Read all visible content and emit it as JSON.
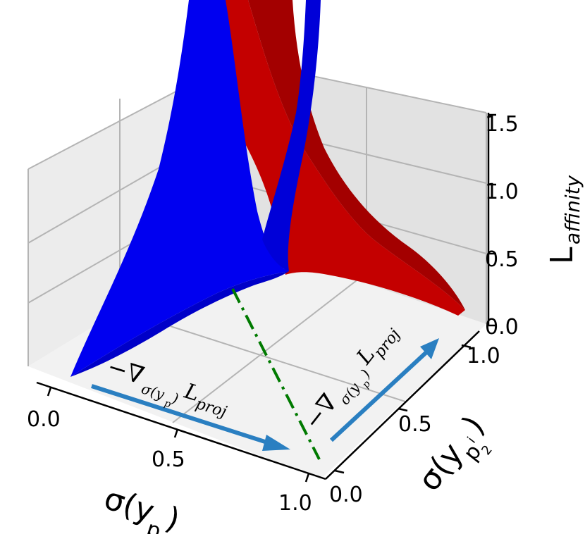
{
  "chart_data": {
    "type": "surface3d",
    "title": "",
    "axes": {
      "x": {
        "label": "σ(y_p)",
        "label_main": "σ(y",
        "label_sub": "p",
        "label_close": ")",
        "ticks": [
          "0.0",
          "0.5",
          "1.0"
        ],
        "range": [
          0,
          1
        ]
      },
      "y": {
        "label": "σ(y_{p_2^i})",
        "label_main": "σ(y",
        "label_sub": "p",
        "label_subsub_sup": "i",
        "label_subsub_sub": "2",
        "label_close": ")",
        "ticks": [
          "0.0",
          "0.5",
          "1.0"
        ],
        "range": [
          0,
          1
        ]
      },
      "z": {
        "label": "L_affinity",
        "label_main": "L",
        "label_sub": "affinity",
        "ticks": [
          "0.0",
          "0.5",
          "1.0",
          "1.5"
        ],
        "range": [
          0,
          1.5
        ]
      }
    },
    "grid": true,
    "series": [
      {
        "color": "#0000ff",
        "grid": [
          0,
          0.25,
          0.5,
          0.75,
          1.0
        ],
        "z": [
          [
            0.1,
            0.3,
            0.8,
            1.6,
            3.0
          ],
          [
            0.15,
            0.35,
            0.85,
            1.7,
            3.1
          ],
          [
            0.25,
            0.45,
            0.95,
            1.8,
            3.2
          ],
          [
            0.45,
            0.65,
            1.1,
            2.0,
            3.4
          ],
          [
            0.9,
            1.1,
            1.5,
            2.4,
            3.8
          ]
        ]
      },
      {
        "color": "#cc0000",
        "grid": [
          0,
          0.25,
          0.5,
          0.75,
          1.0
        ],
        "z": [
          [
            3.8,
            2.4,
            1.5,
            1.1,
            0.9
          ],
          [
            3.4,
            2.0,
            1.1,
            0.65,
            0.45
          ],
          [
            3.2,
            1.8,
            0.95,
            0.45,
            0.25
          ],
          [
            3.1,
            1.7,
            0.85,
            0.35,
            0.15
          ],
          [
            3.0,
            1.6,
            0.8,
            0.3,
            0.1
          ]
        ]
      }
    ],
    "annotations": {
      "grad_x": {
        "main": "−∇",
        "sub": "σ(y",
        "sub2": "p",
        "sub3": ")",
        "tail": "L",
        "tail_sub": "proj"
      },
      "grad_y": {
        "main": "−∇",
        "sub": "σ(y",
        "sub2": "p",
        "sub3": ")",
        "tail": "L",
        "tail_sub": "proj"
      }
    },
    "colors": {
      "arrow": "#2a7fc1",
      "dashed": "#007a00"
    }
  }
}
